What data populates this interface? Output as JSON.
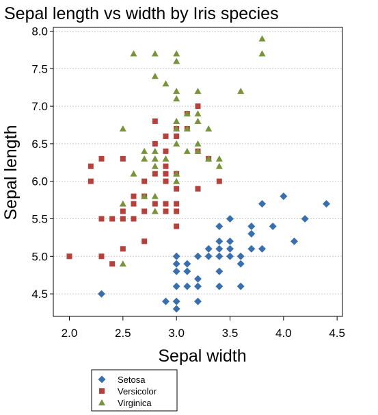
{
  "chart_data": {
    "type": "scatter",
    "title": "Sepal length vs width by Iris species",
    "xlabel": "Sepal width",
    "ylabel": "Sepal length",
    "xlim": [
      1.85,
      4.55
    ],
    "ylim": [
      4.2,
      8.05
    ],
    "xticks": [
      "2.0",
      "2.5",
      "3.0",
      "3.5",
      "4.0",
      "4.5"
    ],
    "yticks": [
      "4.5",
      "5.0",
      "5.5",
      "6.0",
      "6.5",
      "7.0",
      "7.5",
      "8.0"
    ],
    "grid": "horizontal dashed",
    "legend_position": "bottom-left",
    "series": [
      {
        "name": "Setosa",
        "marker": "diamond",
        "color": "#3a6faf",
        "points": [
          [
            2.3,
            4.5
          ],
          [
            2.9,
            4.4
          ],
          [
            3.0,
            4.4
          ],
          [
            3.0,
            4.3
          ],
          [
            3.0,
            5.0
          ],
          [
            3.0,
            4.9
          ],
          [
            3.0,
            4.8
          ],
          [
            3.0,
            4.6
          ],
          [
            3.1,
            4.9
          ],
          [
            3.1,
            4.8
          ],
          [
            3.1,
            4.6
          ],
          [
            3.2,
            5.0
          ],
          [
            3.2,
            4.7
          ],
          [
            3.2,
            4.6
          ],
          [
            3.2,
            4.4
          ],
          [
            3.3,
            5.1
          ],
          [
            3.3,
            5.0
          ],
          [
            3.4,
            5.4
          ],
          [
            3.4,
            5.2
          ],
          [
            3.4,
            5.1
          ],
          [
            3.4,
            5.0
          ],
          [
            3.4,
            4.8
          ],
          [
            3.4,
            4.6
          ],
          [
            3.5,
            5.5
          ],
          [
            3.5,
            5.2
          ],
          [
            3.5,
            5.1
          ],
          [
            3.5,
            5.0
          ],
          [
            3.6,
            5.0
          ],
          [
            3.6,
            4.9
          ],
          [
            3.6,
            4.6
          ],
          [
            3.7,
            5.4
          ],
          [
            3.7,
            5.3
          ],
          [
            3.7,
            5.1
          ],
          [
            3.8,
            5.7
          ],
          [
            3.8,
            5.1
          ],
          [
            3.9,
            5.4
          ],
          [
            4.0,
            5.8
          ],
          [
            4.1,
            5.2
          ],
          [
            4.2,
            5.5
          ],
          [
            4.4,
            5.7
          ]
        ]
      },
      {
        "name": "Versicolor",
        "marker": "square",
        "color": "#b5403c",
        "points": [
          [
            2.0,
            5.0
          ],
          [
            2.2,
            6.2
          ],
          [
            2.2,
            6.0
          ],
          [
            2.3,
            6.3
          ],
          [
            2.3,
            5.5
          ],
          [
            2.3,
            5.0
          ],
          [
            2.4,
            5.5
          ],
          [
            2.4,
            4.9
          ],
          [
            2.5,
            6.3
          ],
          [
            2.5,
            5.6
          ],
          [
            2.5,
            5.5
          ],
          [
            2.5,
            5.1
          ],
          [
            2.6,
            5.8
          ],
          [
            2.6,
            5.7
          ],
          [
            2.6,
            5.5
          ],
          [
            2.7,
            6.0
          ],
          [
            2.7,
            5.8
          ],
          [
            2.7,
            5.6
          ],
          [
            2.7,
            5.2
          ],
          [
            2.8,
            6.8
          ],
          [
            2.8,
            6.5
          ],
          [
            2.8,
            6.1
          ],
          [
            2.8,
            5.7
          ],
          [
            2.9,
            6.6
          ],
          [
            2.9,
            6.4
          ],
          [
            2.9,
            6.2
          ],
          [
            2.9,
            6.1
          ],
          [
            2.9,
            6.0
          ],
          [
            2.9,
            5.7
          ],
          [
            2.9,
            5.6
          ],
          [
            3.0,
            6.7
          ],
          [
            3.0,
            6.6
          ],
          [
            3.0,
            6.1
          ],
          [
            3.0,
            5.9
          ],
          [
            3.0,
            5.7
          ],
          [
            3.0,
            5.6
          ],
          [
            3.0,
            5.4
          ],
          [
            3.1,
            6.9
          ],
          [
            3.1,
            6.7
          ],
          [
            3.2,
            7.0
          ],
          [
            3.2,
            6.4
          ],
          [
            3.2,
            5.9
          ],
          [
            3.3,
            6.3
          ],
          [
            3.4,
            6.0
          ]
        ]
      },
      {
        "name": "Virginica",
        "marker": "triangle",
        "color": "#77943a",
        "points": [
          [
            2.5,
            6.7
          ],
          [
            2.5,
            5.7
          ],
          [
            2.5,
            4.9
          ],
          [
            2.6,
            7.7
          ],
          [
            2.6,
            6.1
          ],
          [
            2.7,
            6.4
          ],
          [
            2.7,
            6.3
          ],
          [
            2.7,
            5.8
          ],
          [
            2.8,
            7.7
          ],
          [
            2.8,
            7.4
          ],
          [
            2.8,
            6.4
          ],
          [
            2.8,
            6.3
          ],
          [
            2.8,
            6.2
          ],
          [
            2.8,
            5.8
          ],
          [
            2.8,
            5.6
          ],
          [
            2.9,
            7.3
          ],
          [
            2.9,
            6.3
          ],
          [
            3.0,
            7.7
          ],
          [
            3.0,
            7.6
          ],
          [
            3.0,
            7.2
          ],
          [
            3.0,
            7.1
          ],
          [
            3.0,
            6.8
          ],
          [
            3.0,
            6.7
          ],
          [
            3.0,
            6.5
          ],
          [
            3.0,
            6.1
          ],
          [
            3.0,
            6.0
          ],
          [
            3.1,
            6.9
          ],
          [
            3.1,
            6.7
          ],
          [
            3.1,
            6.4
          ],
          [
            3.2,
            7.2
          ],
          [
            3.2,
            6.9
          ],
          [
            3.2,
            6.8
          ],
          [
            3.2,
            6.5
          ],
          [
            3.2,
            6.4
          ],
          [
            3.3,
            6.7
          ],
          [
            3.3,
            6.3
          ],
          [
            3.4,
            6.3
          ],
          [
            3.4,
            6.2
          ],
          [
            3.6,
            7.2
          ],
          [
            3.8,
            7.9
          ],
          [
            3.8,
            7.7
          ]
        ]
      }
    ]
  }
}
